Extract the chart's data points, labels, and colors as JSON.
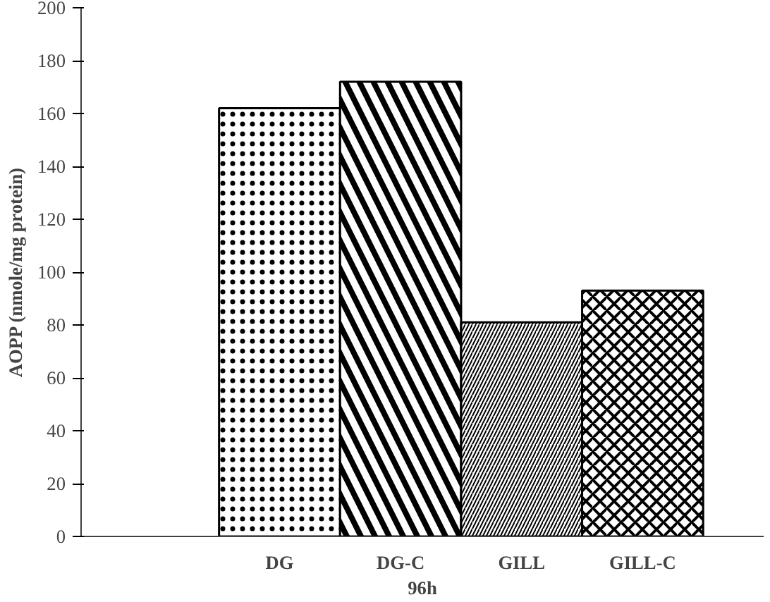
{
  "chart_data": {
    "type": "bar",
    "xlabel": "96h",
    "ylabel": "AOPP (nmole/mg protein)",
    "categories": [
      "DG",
      "DG-C",
      "GILL",
      "GILL-C"
    ],
    "values": [
      162,
      172,
      81,
      93
    ],
    "colors": [
      "#ffffff",
      "#ffffff",
      "#ffffff",
      "#ffffff"
    ],
    "ylim": [
      0,
      200
    ],
    "yticks": [
      0,
      20,
      40,
      60,
      80,
      100,
      120,
      140,
      160,
      180,
      200
    ],
    "grid": false
  }
}
